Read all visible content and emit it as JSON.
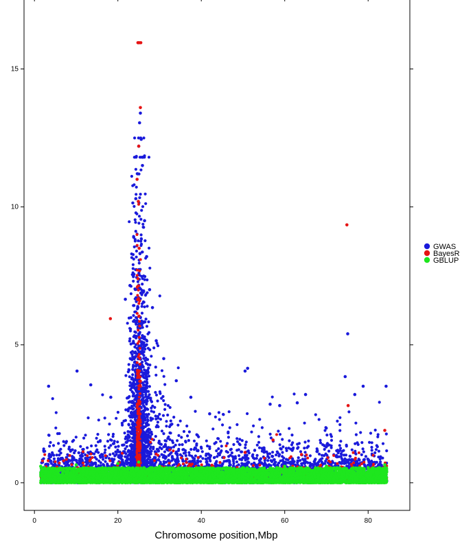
{
  "chart_data": {
    "type": "scatter",
    "title": "",
    "xlabel": "Chromosome position,Mbp",
    "ylabel": "",
    "xlim": [
      -2.5,
      90
    ],
    "ylim": [
      -1,
      17.5
    ],
    "xticks": [
      0,
      20,
      40,
      60,
      80
    ],
    "yticks": [
      0,
      5,
      10,
      15
    ],
    "xtick_labels": [
      "0",
      "20",
      "40",
      "60",
      "80"
    ],
    "ytick_labels": [
      "0",
      "5",
      "10",
      "15"
    ],
    "grid": false,
    "legend_position": "right",
    "series": [
      {
        "name": "GWAS",
        "color": "#1a1adb",
        "points": [
          [
            3.4,
            3.5
          ],
          [
            10.2,
            4.05
          ],
          [
            13.5,
            3.55
          ],
          [
            18.3,
            3.1
          ],
          [
            21.8,
            6.65
          ],
          [
            22.9,
            7.15
          ],
          [
            23.8,
            8.9
          ],
          [
            24.3,
            10.3
          ],
          [
            24.7,
            11.2
          ],
          [
            25.0,
            12.2
          ],
          [
            25.2,
            13.05
          ],
          [
            25.4,
            13.4
          ],
          [
            25.6,
            12.45
          ],
          [
            25.9,
            11.5
          ],
          [
            26.4,
            9.5
          ],
          [
            26.9,
            8.2
          ],
          [
            27.6,
            7.0
          ],
          [
            28.3,
            6.35
          ],
          [
            29.2,
            5.15
          ],
          [
            31.0,
            4.5
          ],
          [
            34.0,
            3.7
          ],
          [
            37.5,
            3.1
          ],
          [
            42.0,
            2.5
          ],
          [
            50.5,
            4.05
          ],
          [
            51.1,
            4.15
          ],
          [
            56.5,
            2.85
          ],
          [
            58.8,
            2.8
          ],
          [
            63.0,
            2.9
          ],
          [
            65.0,
            3.2
          ],
          [
            74.5,
            3.85
          ],
          [
            75.1,
            5.4
          ],
          [
            76.8,
            3.2
          ],
          [
            78.8,
            3.5
          ],
          [
            84.3,
            3.5
          ]
        ]
      },
      {
        "name": "BayesR",
        "color": "#e61414",
        "points": [
          [
            18.2,
            5.95
          ],
          [
            24.6,
            11.0
          ],
          [
            24.8,
            15.95
          ],
          [
            25.1,
            15.95
          ],
          [
            25.5,
            15.95
          ],
          [
            25.4,
            13.6
          ],
          [
            25.0,
            12.2
          ],
          [
            24.9,
            10.2
          ],
          [
            25.1,
            8.5
          ],
          [
            24.8,
            7.4
          ],
          [
            25.2,
            6.6
          ],
          [
            74.9,
            9.35
          ],
          [
            75.2,
            2.8
          ],
          [
            50.5,
            1.1
          ],
          [
            57.2,
            1.55
          ],
          [
            84.0,
            1.9
          ]
        ]
      },
      {
        "name": "GBLUP",
        "color": "#1ee61e",
        "points": [
          [
            1.5,
            0.6
          ],
          [
            10.0,
            0.65
          ],
          [
            20.0,
            0.7
          ],
          [
            25.0,
            0.75
          ],
          [
            30.0,
            0.6
          ],
          [
            40.0,
            0.55
          ],
          [
            50.0,
            0.55
          ],
          [
            60.0,
            0.6
          ],
          [
            70.0,
            0.6
          ],
          [
            80.0,
            0.55
          ],
          [
            84.0,
            0.65
          ]
        ]
      }
    ]
  }
}
